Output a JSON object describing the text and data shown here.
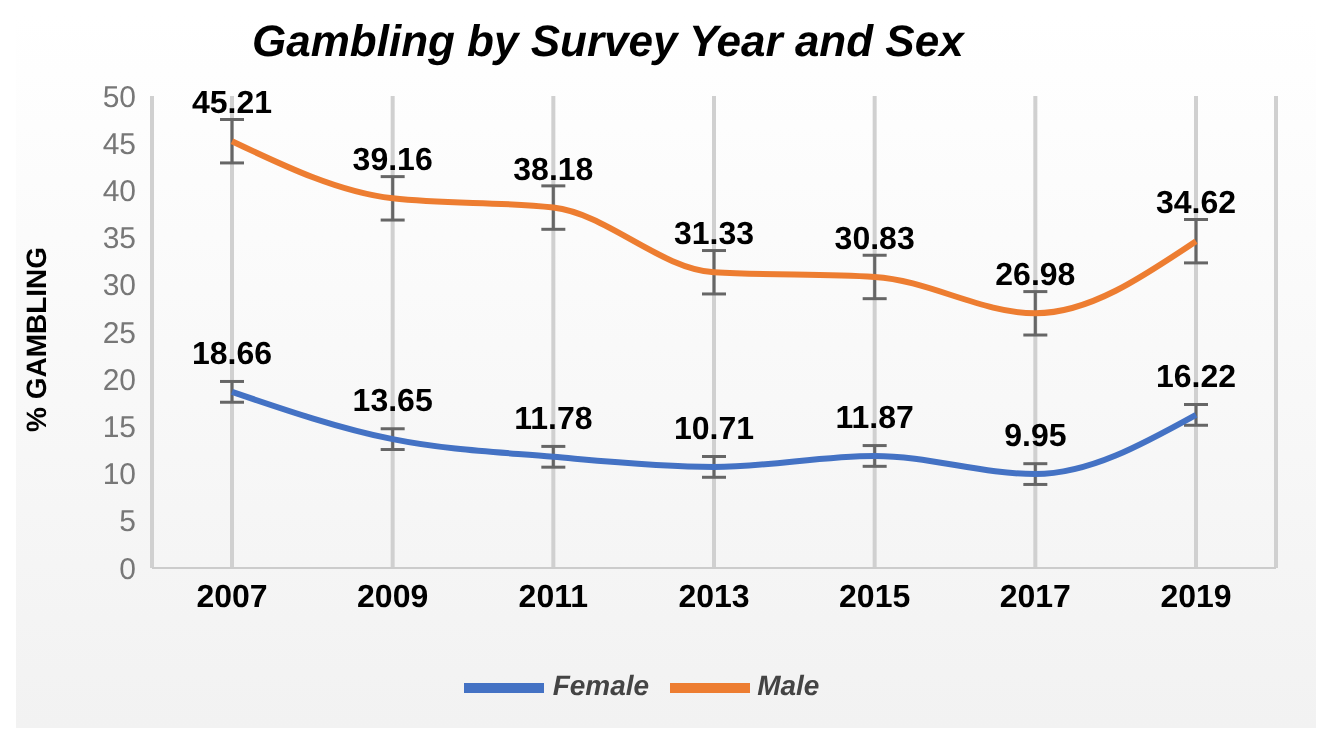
{
  "chart_data": {
    "type": "line",
    "title": "Gambling by Survey Year and Sex",
    "ylabel": "% GAMBLING",
    "categories": [
      "2007",
      "2009",
      "2011",
      "2013",
      "2015",
      "2017",
      "2019"
    ],
    "series": [
      {
        "name": "Female",
        "color": "#4472c4",
        "values": [
          18.66,
          13.65,
          11.78,
          10.71,
          11.87,
          9.95,
          16.22
        ],
        "errors": [
          1.1,
          1.1,
          1.1,
          1.1,
          1.1,
          1.1,
          1.1
        ]
      },
      {
        "name": "Male",
        "color": "#ed7d31",
        "values": [
          45.21,
          39.16,
          38.18,
          31.33,
          30.83,
          26.98,
          34.62
        ],
        "errors": [
          2.3,
          2.3,
          2.3,
          2.3,
          2.3,
          2.3,
          2.3
        ]
      }
    ],
    "ylim": [
      0,
      50
    ],
    "yticks": [
      0,
      5,
      10,
      15,
      20,
      25,
      30,
      35,
      40,
      45,
      50
    ],
    "grid": "x",
    "legend": "bottom",
    "data_labels": true,
    "marker": "none",
    "line_style": "solid"
  }
}
